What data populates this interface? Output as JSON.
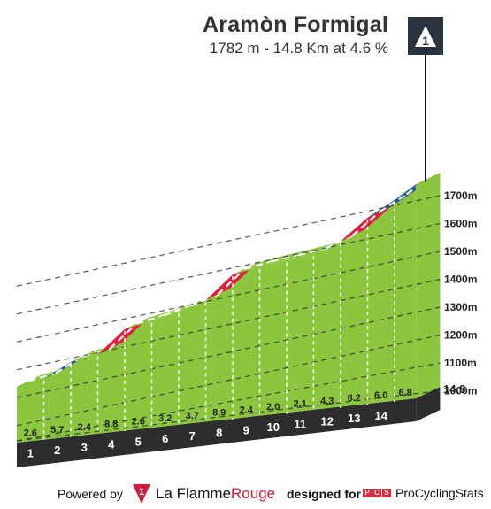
{
  "header": {
    "climb_name": "Aramòn Formigal",
    "summary": "1782 m - 14.8 Km at 4.6 %"
  },
  "summit_marker": {
    "icon": "category-1-triangle-icon",
    "label": "1"
  },
  "chart_data": {
    "type": "area",
    "title": "Aramòn Formigal",
    "subtitle": "1782 m - 14.8 Km at 4.6 %",
    "x_unit": "km",
    "y_unit": "m",
    "xlim": [
      0,
      14.8
    ],
    "ylim": [
      900,
      1782
    ],
    "distance_ticks": [
      "1",
      "2",
      "3",
      "4",
      "5",
      "6",
      "7",
      "8",
      "9",
      "10",
      "11",
      "12",
      "13",
      "14"
    ],
    "end_label": "14.8",
    "elevation_ticks": [
      {
        "value": 1000,
        "label": "1000m"
      },
      {
        "value": 1100,
        "label": "1100m"
      },
      {
        "value": 1200,
        "label": "1200m"
      },
      {
        "value": 1300,
        "label": "1300m"
      },
      {
        "value": 1400,
        "label": "1400m"
      },
      {
        "value": 1500,
        "label": "1500m"
      },
      {
        "value": 1600,
        "label": "1600m"
      },
      {
        "value": 1700,
        "label": "1700m"
      }
    ],
    "segments": [
      {
        "km": "1",
        "gradient": "2.6"
      },
      {
        "km": "2",
        "gradient": "5.7"
      },
      {
        "km": "3",
        "gradient": "2.4"
      },
      {
        "km": "4",
        "gradient": "8.8"
      },
      {
        "km": "5",
        "gradient": "2.6"
      },
      {
        "km": "6",
        "gradient": "3.2"
      },
      {
        "km": "7",
        "gradient": "3.7"
      },
      {
        "km": "8",
        "gradient": "8.9"
      },
      {
        "km": "9",
        "gradient": "2.4"
      },
      {
        "km": "10",
        "gradient": "2.0"
      },
      {
        "km": "11",
        "gradient": "2.1"
      },
      {
        "km": "12",
        "gradient": "4.3"
      },
      {
        "km": "13",
        "gradient": "8.2"
      },
      {
        "km": "14",
        "gradient": "6.0"
      },
      {
        "km": "14.8",
        "gradient": "6.8"
      }
    ],
    "gradient_colors": {
      "easy": "#8cc63f",
      "medium": "#1f5a96",
      "hard": "#e21d3a"
    },
    "grid": true
  },
  "footer": {
    "powered_by": "Powered by",
    "brand_badge": "1",
    "brand_name_a": "La Flamme",
    "brand_name_b": "Rouge",
    "designed_for": "designed for",
    "pcs_letters": [
      "P",
      "C",
      "S"
    ],
    "pcs_name": "ProCyclingStats"
  }
}
